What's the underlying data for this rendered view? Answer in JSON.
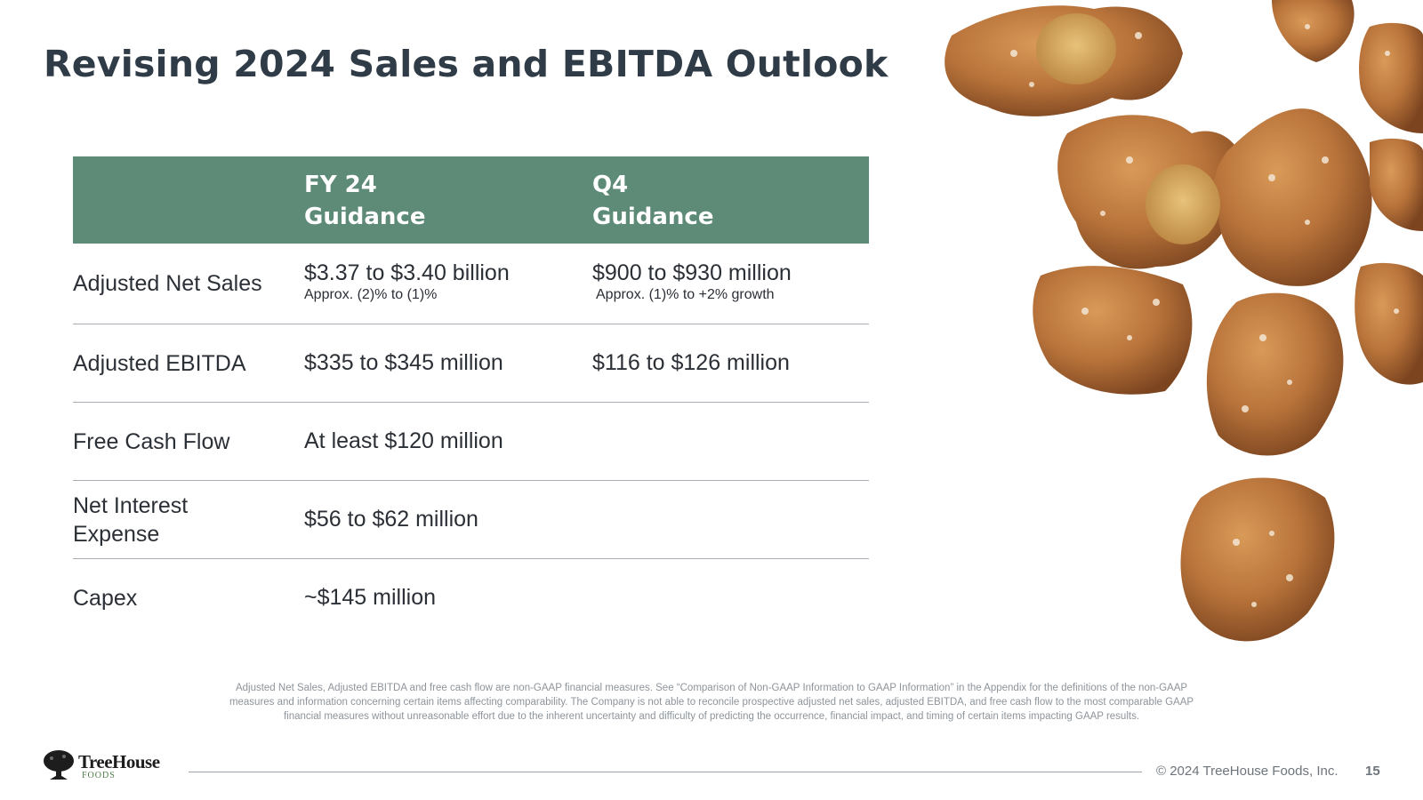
{
  "slide": {
    "title": "Revising 2024 Sales and EBITDA Outlook"
  },
  "table": {
    "headers": [
      {
        "line1": "FY 24",
        "line2": "Guidance"
      },
      {
        "line1": "Q4",
        "line2": "Guidance"
      }
    ],
    "rows": [
      {
        "label": "Adjusted Net Sales",
        "fy24": "$3.37 to $3.40 billion",
        "fy24_note": "Approx. (2)% to (1)%",
        "q4": "$900 to $930 million",
        "q4_note": "Approx. (1)% to +2% growth"
      },
      {
        "label": "Adjusted EBITDA",
        "fy24": "$335 to $345 million",
        "q4": "$116 to $126 million"
      },
      {
        "label": "Free Cash Flow",
        "fy24": "At least $120 million"
      },
      {
        "label_line1": "Net Interest",
        "label_line2": "Expense",
        "fy24": "$56 to $62 million"
      },
      {
        "label": "Capex",
        "fy24": "~$145 million"
      }
    ]
  },
  "footnote": "Adjusted Net Sales, Adjusted EBITDA and free cash flow are non-GAAP financial measures. See “Comparison of Non-GAAP Information to GAAP Information” in the Appendix for the definitions of the non-GAAP measures and information concerning certain items affecting comparability. The Company is not able to reconcile prospective adjusted net sales, adjusted EBITDA, and free cash flow to the most comparable GAAP financial measures without unreasonable effort due to the inherent uncertainty and difficulty of predicting the occurrence, financial impact, and timing of certain items impacting GAAP results.",
  "footer": {
    "logo_name": "TreeHouse",
    "logo_sub": "FOODS",
    "copyright": "© 2024 TreeHouse Foods, Inc.",
    "page_number": "15"
  },
  "colors": {
    "header_fill": "#5e8a78",
    "title_text": "#2f3b47",
    "pretzel": "#b8733a"
  }
}
